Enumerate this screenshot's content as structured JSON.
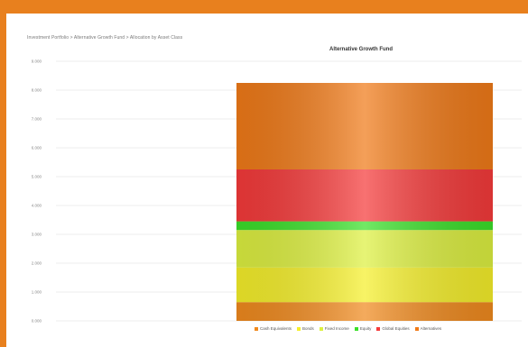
{
  "header": {
    "breadcrumb": "Investment Portfolio > Alternative Growth Fund > Allocation by Asset Class"
  },
  "chart_data": {
    "type": "bar",
    "stacked": true,
    "title": "Alternative Growth Fund",
    "xlabel": "",
    "ylabel": "",
    "categories": [
      ""
    ],
    "ylim": [
      0,
      9000
    ],
    "yticks": [
      0,
      1000,
      2000,
      3000,
      4000,
      5000,
      6000,
      7000,
      8000,
      9000
    ],
    "ytick_labels": [
      "0.000",
      "1.000",
      "2.000",
      "3.000",
      "4.000",
      "5.000",
      "6.000",
      "7.000",
      "8.000",
      "9.000"
    ],
    "grid": true,
    "legend": "bottom",
    "series": [
      {
        "name": "Cash Equivalents",
        "values": [
          650
        ],
        "color": "#f08a1e"
      },
      {
        "name": "Bonds",
        "values": [
          1200
        ],
        "color": "#f5ef2a"
      },
      {
        "name": "Fixed Income",
        "values": [
          1300
        ],
        "color": "#ddf040"
      },
      {
        "name": "Equity",
        "values": [
          300
        ],
        "color": "#3be02a"
      },
      {
        "name": "Global Equities",
        "values": [
          1800
        ],
        "color": "#f53a3a"
      },
      {
        "name": "Alternatives",
        "values": [
          3000
        ],
        "color": "#f07a18"
      }
    ]
  }
}
